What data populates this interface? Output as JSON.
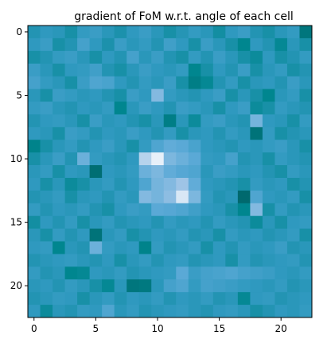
{
  "chart_data": {
    "type": "heatmap",
    "title": "gradient of FoM w.r.t. angle of each cell",
    "rows": 23,
    "cols": 23,
    "x_ticks": [
      0,
      5,
      10,
      15,
      20
    ],
    "y_ticks": [
      0,
      5,
      10,
      15,
      20
    ],
    "colormap": [
      "#00666a",
      "#00868f",
      "#2f99bf",
      "#5aa9d6",
      "#9ec4e6",
      "#ffffff"
    ],
    "values": [
      [
        0.35,
        0.4,
        0.38,
        0.3,
        0.42,
        0.45,
        0.38,
        0.32,
        0.4,
        0.45,
        0.38,
        0.3,
        0.36,
        0.42,
        0.38,
        0.28,
        0.4,
        0.45,
        0.35,
        0.3,
        0.38,
        0.42,
        0.1
      ],
      [
        0.4,
        0.45,
        0.3,
        0.35,
        0.5,
        0.4,
        0.32,
        0.45,
        0.38,
        0.42,
        0.35,
        0.48,
        0.4,
        0.3,
        0.45,
        0.38,
        0.3,
        0.2,
        0.4,
        0.35,
        0.22,
        0.38,
        0.3
      ],
      [
        0.3,
        0.35,
        0.42,
        0.45,
        0.38,
        0.3,
        0.4,
        0.35,
        0.5,
        0.38,
        0.45,
        0.35,
        0.3,
        0.42,
        0.35,
        0.45,
        0.38,
        0.3,
        0.25,
        0.4,
        0.3,
        0.35,
        0.42
      ],
      [
        0.45,
        0.38,
        0.3,
        0.4,
        0.42,
        0.48,
        0.35,
        0.3,
        0.38,
        0.45,
        0.4,
        0.38,
        0.42,
        0.2,
        0.3,
        0.4,
        0.35,
        0.45,
        0.3,
        0.38,
        0.42,
        0.3,
        0.35
      ],
      [
        0.5,
        0.42,
        0.38,
        0.3,
        0.45,
        0.55,
        0.52,
        0.4,
        0.35,
        0.42,
        0.38,
        0.45,
        0.3,
        0.15,
        0.22,
        0.35,
        0.42,
        0.3,
        0.38,
        0.4,
        0.35,
        0.45,
        0.38
      ],
      [
        0.38,
        0.3,
        0.45,
        0.42,
        0.38,
        0.4,
        0.35,
        0.3,
        0.45,
        0.4,
        0.72,
        0.42,
        0.38,
        0.35,
        0.4,
        0.45,
        0.3,
        0.38,
        0.3,
        0.2,
        0.38,
        0.42,
        0.3
      ],
      [
        0.42,
        0.45,
        0.38,
        0.35,
        0.4,
        0.38,
        0.42,
        0.2,
        0.38,
        0.45,
        0.4,
        0.35,
        0.45,
        0.42,
        0.38,
        0.3,
        0.4,
        0.45,
        0.25,
        0.3,
        0.42,
        0.38,
        0.35
      ],
      [
        0.35,
        0.4,
        0.42,
        0.38,
        0.3,
        0.45,
        0.38,
        0.4,
        0.35,
        0.3,
        0.38,
        0.15,
        0.38,
        0.25,
        0.42,
        0.45,
        0.38,
        0.35,
        0.68,
        0.4,
        0.38,
        0.3,
        0.42
      ],
      [
        0.4,
        0.38,
        0.3,
        0.45,
        0.42,
        0.35,
        0.4,
        0.38,
        0.45,
        0.4,
        0.35,
        0.42,
        0.3,
        0.38,
        0.4,
        0.35,
        0.42,
        0.38,
        0.08,
        0.42,
        0.3,
        0.35,
        0.38
      ],
      [
        0.18,
        0.3,
        0.38,
        0.42,
        0.35,
        0.4,
        0.45,
        0.38,
        0.3,
        0.42,
        0.55,
        0.62,
        0.6,
        0.52,
        0.4,
        0.38,
        0.35,
        0.4,
        0.38,
        0.42,
        0.45,
        0.38,
        0.3
      ],
      [
        0.3,
        0.38,
        0.45,
        0.35,
        0.65,
        0.42,
        0.38,
        0.35,
        0.4,
        0.85,
        0.95,
        0.7,
        0.65,
        0.6,
        0.42,
        0.4,
        0.5,
        0.35,
        0.38,
        0.3,
        0.42,
        0.38,
        0.35
      ],
      [
        0.38,
        0.42,
        0.3,
        0.4,
        0.38,
        0.05,
        0.4,
        0.38,
        0.42,
        0.65,
        0.7,
        0.62,
        0.58,
        0.55,
        0.38,
        0.45,
        0.42,
        0.38,
        0.4,
        0.35,
        0.3,
        0.42,
        0.38
      ],
      [
        0.4,
        0.3,
        0.38,
        0.25,
        0.3,
        0.38,
        0.42,
        0.35,
        0.4,
        0.55,
        0.68,
        0.72,
        0.8,
        0.62,
        0.4,
        0.38,
        0.35,
        0.3,
        0.42,
        0.38,
        0.4,
        0.3,
        0.35
      ],
      [
        0.35,
        0.38,
        0.42,
        0.3,
        0.38,
        0.4,
        0.35,
        0.42,
        0.38,
        0.72,
        0.68,
        0.75,
        0.92,
        0.7,
        0.42,
        0.35,
        0.38,
        0.02,
        0.55,
        0.4,
        0.38,
        0.42,
        0.3
      ],
      [
        0.42,
        0.35,
        0.4,
        0.38,
        0.42,
        0.35,
        0.3,
        0.4,
        0.45,
        0.42,
        0.6,
        0.58,
        0.55,
        0.48,
        0.4,
        0.38,
        0.3,
        0.2,
        0.72,
        0.3,
        0.42,
        0.35,
        0.38
      ],
      [
        0.28,
        0.4,
        0.35,
        0.42,
        0.3,
        0.38,
        0.42,
        0.35,
        0.38,
        0.4,
        0.35,
        0.42,
        0.38,
        0.4,
        0.35,
        0.42,
        0.38,
        0.35,
        0.25,
        0.38,
        0.3,
        0.4,
        0.42
      ],
      [
        0.38,
        0.3,
        0.42,
        0.35,
        0.4,
        0.08,
        0.38,
        0.42,
        0.3,
        0.35,
        0.4,
        0.38,
        0.42,
        0.35,
        0.38,
        0.3,
        0.42,
        0.38,
        0.4,
        0.35,
        0.38,
        0.42,
        0.3
      ],
      [
        0.4,
        0.42,
        0.2,
        0.38,
        0.35,
        0.65,
        0.42,
        0.38,
        0.4,
        0.18,
        0.42,
        0.35,
        0.38,
        0.42,
        0.3,
        0.4,
        0.35,
        0.42,
        0.38,
        0.4,
        0.45,
        0.35,
        0.38
      ],
      [
        0.35,
        0.38,
        0.4,
        0.42,
        0.38,
        0.35,
        0.4,
        0.3,
        0.38,
        0.42,
        0.35,
        0.4,
        0.42,
        0.35,
        0.38,
        0.4,
        0.3,
        0.42,
        0.35,
        0.38,
        0.4,
        0.42,
        0.35
      ],
      [
        0.42,
        0.35,
        0.38,
        0.2,
        0.22,
        0.4,
        0.38,
        0.42,
        0.35,
        0.38,
        0.4,
        0.42,
        0.6,
        0.45,
        0.5,
        0.52,
        0.55,
        0.5,
        0.48,
        0.45,
        0.4,
        0.38,
        0.42
      ],
      [
        0.38,
        0.4,
        0.35,
        0.42,
        0.38,
        0.3,
        0.22,
        0.38,
        0.1,
        0.12,
        0.38,
        0.5,
        0.55,
        0.42,
        0.5,
        0.48,
        0.45,
        0.42,
        0.4,
        0.38,
        0.42,
        0.35,
        0.38
      ],
      [
        0.35,
        0.38,
        0.42,
        0.4,
        0.3,
        0.38,
        0.42,
        0.35,
        0.4,
        0.38,
        0.42,
        0.35,
        0.4,
        0.38,
        0.42,
        0.35,
        0.38,
        0.22,
        0.4,
        0.42,
        0.35,
        0.38,
        0.4
      ],
      [
        0.4,
        0.25,
        0.38,
        0.35,
        0.42,
        0.4,
        0.55,
        0.38,
        0.42,
        0.35,
        0.38,
        0.4,
        0.42,
        0.38,
        0.35,
        0.4,
        0.42,
        0.38,
        0.3,
        0.35,
        0.4,
        0.38,
        0.42
      ]
    ]
  }
}
